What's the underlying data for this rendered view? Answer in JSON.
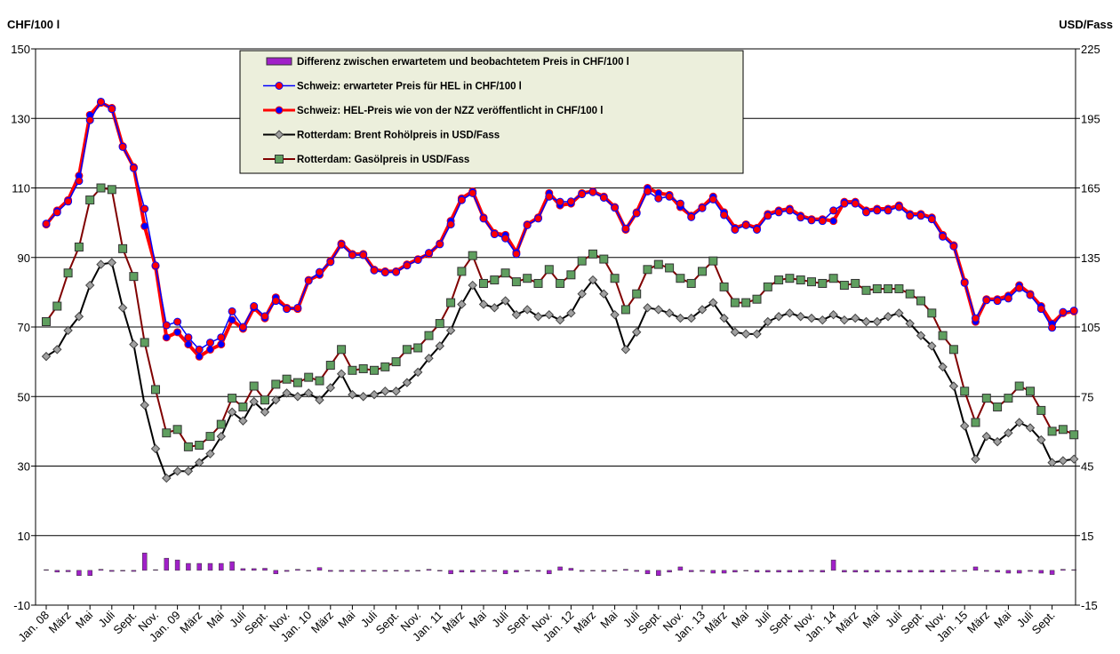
{
  "chart_data": {
    "type": "bar_line",
    "y_label": "CHF/100 l",
    "y2_label": "USD/Fass",
    "ylim": [
      -10,
      150
    ],
    "yticks": [
      -10,
      10,
      30,
      50,
      70,
      90,
      110,
      130,
      150
    ],
    "y2lim": [
      -15,
      225
    ],
    "y2ticks": [
      -15,
      15,
      45,
      75,
      105,
      135,
      165,
      195,
      225
    ],
    "grid": true,
    "categories": [
      "Jan. 08",
      null,
      "März",
      null,
      "Mai",
      null,
      "Juli",
      null,
      "Sept.",
      null,
      "Nov.",
      null,
      "Jan. 09",
      null,
      "März",
      null,
      "Mai",
      null,
      "Juli",
      null,
      "Sept.",
      null,
      "Nov.",
      null,
      "Jan. 10",
      null,
      "März",
      null,
      "Mai",
      null,
      "Juli",
      null,
      "Sept.",
      null,
      "Nov.",
      null,
      "Jan. 11",
      null,
      "März",
      null,
      "Mai",
      null,
      "Juli",
      null,
      "Sept.",
      null,
      "Nov.",
      null,
      "Jan. 12",
      null,
      "März",
      null,
      "Mai",
      null,
      "Juli",
      null,
      "Sept.",
      null,
      "Nov.",
      null,
      "Jan. 13",
      null,
      "März",
      null,
      "Mai",
      null,
      "Juli",
      null,
      "Sept.",
      null,
      "Nov.",
      null,
      "Jan. 14",
      null,
      "März",
      null,
      "Mai",
      null,
      "Juli",
      null,
      "Sept.",
      null,
      "Nov.",
      null,
      "Jan. 15",
      null,
      "März",
      null,
      "Mai",
      null,
      "Juli",
      null,
      "Sept.",
      null,
      null
    ],
    "series": [
      {
        "name": "Differenz zwischen erwartetem und beobachtetem Preis in CHF/100 l",
        "type": "bar",
        "color": "#a020c8",
        "values": [
          0.2,
          -0.5,
          -0.4,
          -1.5,
          -1.5,
          0.3,
          -0.3,
          -0.2,
          -0.3,
          5,
          0.2,
          3.5,
          3,
          2,
          2,
          2,
          2,
          2.5,
          0.5,
          0.5,
          0.6,
          -1,
          -0.3,
          0.3,
          -0.2,
          0.8,
          -0.3,
          -0.3,
          -0.3,
          -0.3,
          -0.2,
          -0.3,
          -0.2,
          -0.3,
          -0.2,
          0.3,
          -0.2,
          -1,
          -0.5,
          -0.5,
          -0.3,
          -0.3,
          -1,
          -0.5,
          -0.2,
          -0.3,
          -1,
          1,
          0.6,
          -0.3,
          -0.2,
          -0.3,
          -0.2,
          0.3,
          -0.3,
          -1,
          -1.5,
          -0.5,
          1,
          -0.4,
          -0.3,
          -0.8,
          -0.8,
          -0.5,
          -0.2,
          -0.5,
          -0.5,
          -0.5,
          -0.5,
          -0.5,
          -0.3,
          -0.5,
          3,
          -0.5,
          -0.5,
          -0.5,
          -0.5,
          -0.5,
          -0.5,
          -0.5,
          -0.5,
          -0.5,
          -0.5,
          -0.3,
          -0.3,
          1,
          -0.3,
          -0.5,
          -0.8,
          -0.8,
          -0.3,
          -0.8,
          -1.2,
          0.3,
          0.2
        ]
      },
      {
        "name": "Schweiz: HEL-Preis wie von der NZZ veröffentlicht in CHF/100 l",
        "type": "line",
        "color": "#ff0000",
        "marker": "circle",
        "marker_color": "#0000ff",
        "width": 4,
        "values": [
          99.5,
          103.5,
          106.5,
          113.5,
          131,
          134.5,
          133,
          122,
          116,
          99,
          87.5,
          67,
          68.5,
          65,
          61.5,
          63.5,
          65,
          72,
          69.5,
          75.5,
          72.5,
          78.5,
          75.5,
          75.2,
          83.5,
          85,
          89,
          94,
          91,
          91,
          86.5,
          86,
          86,
          88,
          89.5,
          91,
          94,
          100.5,
          107,
          109,
          101.5,
          97,
          96.5,
          91.5,
          99.5,
          101.5,
          108.5,
          105,
          105.5,
          108.5,
          109,
          107.5,
          104.5,
          98,
          103,
          110,
          108.5,
          108,
          104.5,
          102,
          104.5,
          107.5,
          103,
          98.5,
          99.5,
          98.5,
          102.5,
          103.5,
          104,
          102,
          101,
          101,
          100.5,
          106,
          106,
          103.5,
          104,
          104,
          105,
          102.5,
          102.5,
          101.5,
          96.5,
          93.5,
          83,
          71.5,
          78,
          78,
          79,
          82,
          79.5,
          76,
          71,
          74,
          74.5
        ]
      },
      {
        "name": "Schweiz: erwarteter Preis für HEL in CHF/100 l",
        "type": "line",
        "color": "#0000ff",
        "marker": "circle",
        "marker_color": "#ff0000",
        "width": 1.5,
        "values": [
          99.7,
          103,
          106.1,
          112,
          129.5,
          134.8,
          132.7,
          121.8,
          115.7,
          104,
          87.7,
          70.5,
          71.5,
          67,
          63.5,
          65.5,
          67,
          74.5,
          70,
          76,
          73.1,
          77.5,
          75.2,
          75.5,
          83.3,
          85.8,
          88.7,
          93.7,
          90.7,
          90.7,
          86.3,
          85.7,
          85.8,
          87.7,
          89.3,
          91.3,
          93.8,
          99.5,
          106.5,
          108.5,
          101.2,
          96.7,
          95.5,
          91,
          99.3,
          101.2,
          107.5,
          106,
          106.1,
          108.2,
          108.8,
          107.2,
          104.3,
          98.3,
          102.7,
          109,
          107,
          107.5,
          105.5,
          101.6,
          104.2,
          106.7,
          102.2,
          98,
          99.3,
          98,
          102,
          103,
          103.5,
          101.5,
          100.7,
          100.5,
          103.5,
          105.5,
          105.5,
          103,
          103.5,
          103.5,
          104.5,
          102,
          102,
          101,
          96,
          93.2,
          82.7,
          72.5,
          77.7,
          77.5,
          78.2,
          81.2,
          79.2,
          75.2,
          69.8,
          74.3,
          74.7
        ]
      },
      {
        "name": "Rotterdam: Brent Rohölpreis in USD/Fass",
        "type": "line",
        "axis": "y2",
        "color": "#000000",
        "marker": "diamond",
        "marker_color": "#a0a0a0",
        "width": 2,
        "values": [
          92.3,
          95.3,
          103.5,
          109.5,
          123,
          132,
          132.8,
          113.3,
          97.5,
          71.3,
          52.5,
          39.8,
          42.8,
          42.8,
          46.5,
          50.3,
          57.8,
          68.3,
          64.5,
          72.8,
          68.3,
          73.5,
          76.5,
          75,
          76.5,
          73.5,
          78.8,
          84.8,
          75.8,
          75,
          75.8,
          77.3,
          77.3,
          81,
          85.5,
          91.5,
          96.8,
          103.5,
          114.8,
          123,
          114.8,
          113.3,
          116.3,
          110.3,
          112.5,
          109.5,
          110.3,
          108,
          111,
          119.3,
          125.3,
          119.3,
          110.3,
          95.3,
          102.8,
          113.3,
          112.5,
          111,
          108.8,
          108.8,
          112.5,
          115.5,
          108.8,
          102.8,
          102,
          102,
          107.3,
          109.5,
          111,
          109.5,
          108.8,
          108,
          110.3,
          108,
          108.8,
          107.3,
          107.3,
          109.5,
          111,
          106.5,
          101.3,
          96.8,
          87.8,
          79.5,
          62.3,
          48,
          57.8,
          55.5,
          59.3,
          63.8,
          61.5,
          56.3,
          46.5,
          47.3,
          48
        ]
      },
      {
        "name": "Rotterdam: Gasölpreis in USD/Fass",
        "type": "line",
        "axis": "y2",
        "color": "#800000",
        "marker": "square",
        "marker_color": "#5f9f5f",
        "width": 2,
        "values": [
          107.3,
          114,
          128.3,
          139.5,
          159.8,
          165,
          164.3,
          138.8,
          126.8,
          98.3,
          78,
          59.3,
          60.8,
          53.3,
          54,
          57.8,
          63,
          74.3,
          70.5,
          79.5,
          73.5,
          80.3,
          82.5,
          81,
          83.3,
          81.8,
          88.5,
          95.3,
          86.3,
          87,
          86.3,
          87.8,
          90,
          95.3,
          96,
          101.3,
          106.5,
          115.5,
          129,
          135.8,
          123.8,
          125.3,
          128.3,
          124.5,
          126,
          123.8,
          129.8,
          123.8,
          127.5,
          133.5,
          136.5,
          134.3,
          126,
          112.5,
          119.3,
          129.8,
          132,
          130.5,
          126,
          123.8,
          129,
          133.5,
          122.3,
          115.5,
          115.5,
          117,
          122.3,
          125.3,
          126,
          125.3,
          124.5,
          123.8,
          126,
          123,
          123.8,
          120.8,
          121.5,
          121.5,
          121.5,
          119.3,
          116.3,
          111,
          101.3,
          95.3,
          77.3,
          63.8,
          74.3,
          70.5,
          74.3,
          79.5,
          77.3,
          69,
          60,
          60.8,
          58.5
        ]
      }
    ],
    "legend_order": [
      0,
      2,
      1,
      3,
      4
    ]
  }
}
